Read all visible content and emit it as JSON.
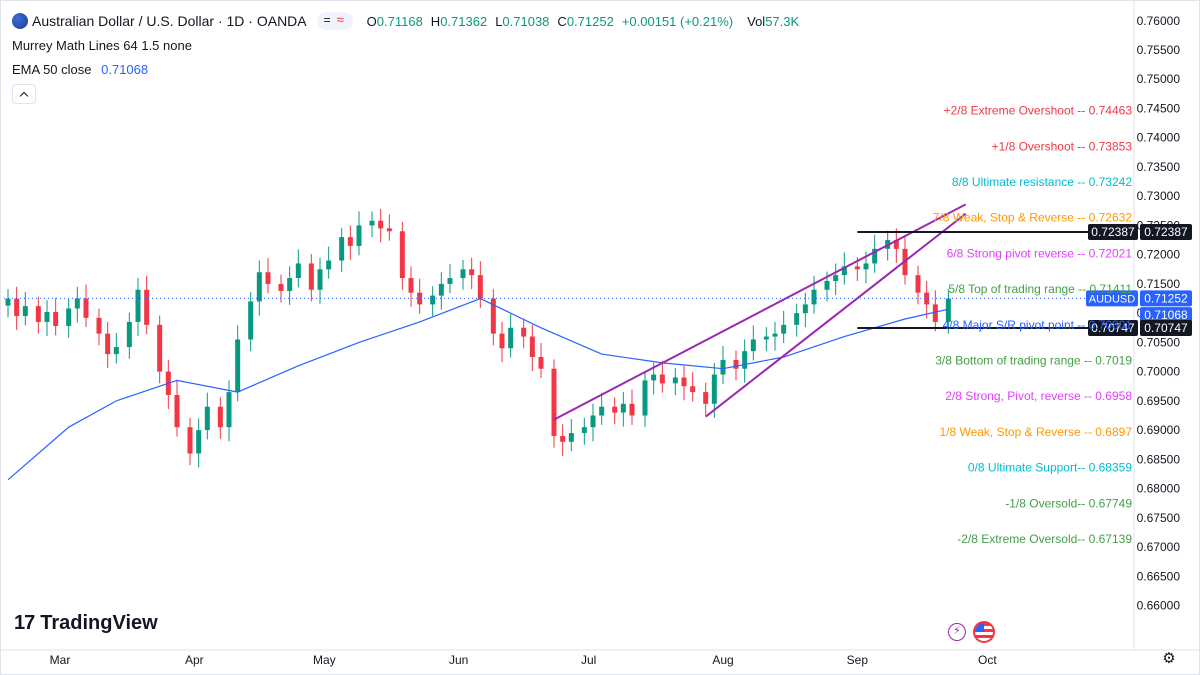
{
  "header": {
    "symbol_title": "Australian Dollar / U.S. Dollar · 1D · OANDA",
    "ohlc": [
      {
        "label": "O",
        "value": "0.71168"
      },
      {
        "label": "H",
        "value": "0.71362"
      },
      {
        "label": "L",
        "value": "0.71038"
      },
      {
        "label": "C",
        "value": "0.71252"
      }
    ],
    "change": "+0.00151 (+0.21%)",
    "volume_label": "Vol",
    "volume_value": "57.3K",
    "indicator1": "Murrey Math Lines 64 1.5 none",
    "indicator2_name": "EMA 50 close",
    "indicator2_value": "0.71068"
  },
  "branding": {
    "logo_text": "TradingView"
  },
  "colors": {
    "up": "#089981",
    "down": "#f23645",
    "ema": "#2962ff",
    "channel": "#9c27b0",
    "hline": "#131722",
    "axis_text": "#131722",
    "price_dots": "#2962ff"
  },
  "chart_data": {
    "type": "candlestick",
    "symbol": "AUDUSD",
    "timeframe": "1D",
    "y_axis": {
      "ticks": [
        "0.76000",
        "0.75500",
        "0.75000",
        "0.74500",
        "0.74000",
        "0.73500",
        "0.73000",
        "0.72500",
        "0.72000",
        "0.71500",
        "0.71000",
        "0.70500",
        "0.70000",
        "0.69500",
        "0.69000",
        "0.68500",
        "0.68000",
        "0.67500",
        "0.67000",
        "0.66500",
        "0.66000"
      ],
      "range": [
        0.6565,
        0.7615
      ]
    },
    "x_axis": {
      "months": [
        {
          "label": "Mar",
          "date": "2025-03-01"
        },
        {
          "label": "Apr",
          "date": "2025-04-01"
        },
        {
          "label": "May",
          "date": "2025-05-01"
        },
        {
          "label": "Jun",
          "date": "2025-06-01"
        },
        {
          "label": "Jul",
          "date": "2025-07-01"
        },
        {
          "label": "Aug",
          "date": "2025-08-01"
        },
        {
          "label": "Sep",
          "date": "2025-09-01"
        },
        {
          "label": "Oct",
          "date": "2025-10-01"
        }
      ],
      "range": [
        "2025-02-17",
        "2025-10-21"
      ]
    },
    "closes": [
      {
        "date": "2025-02-17",
        "close": 0.7125
      },
      {
        "date": "2025-02-19",
        "close": 0.7095
      },
      {
        "date": "2025-02-21",
        "close": 0.7112
      },
      {
        "date": "2025-02-24",
        "close": 0.7085
      },
      {
        "date": "2025-02-26",
        "close": 0.7102
      },
      {
        "date": "2025-02-28",
        "close": 0.7078
      },
      {
        "date": "2025-03-03",
        "close": 0.7108
      },
      {
        "date": "2025-03-05",
        "close": 0.7125
      },
      {
        "date": "2025-03-07",
        "close": 0.7092
      },
      {
        "date": "2025-03-10",
        "close": 0.7065
      },
      {
        "date": "2025-03-12",
        "close": 0.703
      },
      {
        "date": "2025-03-14",
        "close": 0.7042
      },
      {
        "date": "2025-03-17",
        "close": 0.7085
      },
      {
        "date": "2025-03-19",
        "close": 0.714
      },
      {
        "date": "2025-03-21",
        "close": 0.708
      },
      {
        "date": "2025-03-24",
        "close": 0.7
      },
      {
        "date": "2025-03-26",
        "close": 0.696
      },
      {
        "date": "2025-03-28",
        "close": 0.6905
      },
      {
        "date": "2025-03-31",
        "close": 0.686
      },
      {
        "date": "2025-04-02",
        "close": 0.69
      },
      {
        "date": "2025-04-04",
        "close": 0.694
      },
      {
        "date": "2025-04-07",
        "close": 0.6905
      },
      {
        "date": "2025-04-09",
        "close": 0.6965
      },
      {
        "date": "2025-04-11",
        "close": 0.7055
      },
      {
        "date": "2025-04-14",
        "close": 0.712
      },
      {
        "date": "2025-04-16",
        "close": 0.717
      },
      {
        "date": "2025-04-18",
        "close": 0.715
      },
      {
        "date": "2025-04-21",
        "close": 0.7138
      },
      {
        "date": "2025-04-23",
        "close": 0.716
      },
      {
        "date": "2025-04-25",
        "close": 0.7185
      },
      {
        "date": "2025-04-28",
        "close": 0.714
      },
      {
        "date": "2025-04-30",
        "close": 0.7175
      },
      {
        "date": "2025-05-02",
        "close": 0.719
      },
      {
        "date": "2025-05-05",
        "close": 0.723
      },
      {
        "date": "2025-05-07",
        "close": 0.7215
      },
      {
        "date": "2025-05-09",
        "close": 0.725
      },
      {
        "date": "2025-05-12",
        "close": 0.7258
      },
      {
        "date": "2025-05-14",
        "close": 0.7245
      },
      {
        "date": "2025-05-16",
        "close": 0.724
      },
      {
        "date": "2025-05-19",
        "close": 0.716
      },
      {
        "date": "2025-05-21",
        "close": 0.7135
      },
      {
        "date": "2025-05-23",
        "close": 0.7115
      },
      {
        "date": "2025-05-26",
        "close": 0.713
      },
      {
        "date": "2025-05-28",
        "close": 0.715
      },
      {
        "date": "2025-05-30",
        "close": 0.716
      },
      {
        "date": "2025-06-02",
        "close": 0.7175
      },
      {
        "date": "2025-06-04",
        "close": 0.7165
      },
      {
        "date": "2025-06-06",
        "close": 0.7125
      },
      {
        "date": "2025-06-09",
        "close": 0.7065
      },
      {
        "date": "2025-06-11",
        "close": 0.704
      },
      {
        "date": "2025-06-13",
        "close": 0.7075
      },
      {
        "date": "2025-06-16",
        "close": 0.706
      },
      {
        "date": "2025-06-18",
        "close": 0.7025
      },
      {
        "date": "2025-06-20",
        "close": 0.7005
      },
      {
        "date": "2025-06-23",
        "close": 0.689
      },
      {
        "date": "2025-06-25",
        "close": 0.688
      },
      {
        "date": "2025-06-27",
        "close": 0.6895
      },
      {
        "date": "2025-06-30",
        "close": 0.6905
      },
      {
        "date": "2025-07-02",
        "close": 0.6925
      },
      {
        "date": "2025-07-04",
        "close": 0.694
      },
      {
        "date": "2025-07-07",
        "close": 0.693
      },
      {
        "date": "2025-07-09",
        "close": 0.6945
      },
      {
        "date": "2025-07-11",
        "close": 0.6925
      },
      {
        "date": "2025-07-14",
        "close": 0.6985
      },
      {
        "date": "2025-07-16",
        "close": 0.6995
      },
      {
        "date": "2025-07-18",
        "close": 0.698
      },
      {
        "date": "2025-07-21",
        "close": 0.699
      },
      {
        "date": "2025-07-23",
        "close": 0.6975
      },
      {
        "date": "2025-07-25",
        "close": 0.6965
      },
      {
        "date": "2025-07-28",
        "close": 0.6945
      },
      {
        "date": "2025-07-30",
        "close": 0.6995
      },
      {
        "date": "2025-08-01",
        "close": 0.702
      },
      {
        "date": "2025-08-04",
        "close": 0.7005
      },
      {
        "date": "2025-08-06",
        "close": 0.7035
      },
      {
        "date": "2025-08-08",
        "close": 0.7055
      },
      {
        "date": "2025-08-11",
        "close": 0.706
      },
      {
        "date": "2025-08-13",
        "close": 0.7065
      },
      {
        "date": "2025-08-15",
        "close": 0.708
      },
      {
        "date": "2025-08-18",
        "close": 0.71
      },
      {
        "date": "2025-08-20",
        "close": 0.7115
      },
      {
        "date": "2025-08-22",
        "close": 0.714
      },
      {
        "date": "2025-08-25",
        "close": 0.7155
      },
      {
        "date": "2025-08-27",
        "close": 0.7165
      },
      {
        "date": "2025-08-29",
        "close": 0.718
      },
      {
        "date": "2025-09-01",
        "close": 0.7175
      },
      {
        "date": "2025-09-03",
        "close": 0.7185
      },
      {
        "date": "2025-09-05",
        "close": 0.721
      },
      {
        "date": "2025-09-08",
        "close": 0.7225
      },
      {
        "date": "2025-09-10",
        "close": 0.721
      },
      {
        "date": "2025-09-12",
        "close": 0.7165
      },
      {
        "date": "2025-09-15",
        "close": 0.7135
      },
      {
        "date": "2025-09-17",
        "close": 0.7115
      },
      {
        "date": "2025-09-19",
        "close": 0.7085
      },
      {
        "date": "2025-09-22",
        "close": 0.7125
      }
    ],
    "ema50": {
      "name": "EMA 50 close",
      "points": [
        {
          "date": "2025-02-17",
          "value": 0.6815
        },
        {
          "date": "2025-03-03",
          "value": 0.6905
        },
        {
          "date": "2025-03-14",
          "value": 0.695
        },
        {
          "date": "2025-03-28",
          "value": 0.6985
        },
        {
          "date": "2025-04-11",
          "value": 0.6965
        },
        {
          "date": "2025-04-25",
          "value": 0.701
        },
        {
          "date": "2025-05-09",
          "value": 0.705
        },
        {
          "date": "2025-05-23",
          "value": 0.7085
        },
        {
          "date": "2025-06-06",
          "value": 0.7125
        },
        {
          "date": "2025-06-20",
          "value": 0.7075
        },
        {
          "date": "2025-07-04",
          "value": 0.703
        },
        {
          "date": "2025-07-18",
          "value": 0.7015
        },
        {
          "date": "2025-08-01",
          "value": 0.7005
        },
        {
          "date": "2025-08-15",
          "value": 0.7025
        },
        {
          "date": "2025-08-29",
          "value": 0.706
        },
        {
          "date": "2025-09-12",
          "value": 0.709
        },
        {
          "date": "2025-09-22",
          "value": 0.71068
        }
      ]
    },
    "channel_lines": [
      {
        "from": {
          "date": "2025-06-23",
          "price": 0.6918
        },
        "to": {
          "date": "2025-09-26",
          "price": 0.7286
        }
      },
      {
        "from": {
          "date": "2025-07-28",
          "price": 0.6923
        },
        "to": {
          "date": "2025-09-26",
          "price": 0.727
        }
      }
    ],
    "horizontal_lines": [
      {
        "price": 0.72387,
        "label": "0.72387",
        "from_date": "2025-09-01"
      },
      {
        "price": 0.70747,
        "label": "0.70747",
        "from_date": "2025-09-01"
      }
    ],
    "current_price": {
      "symbol": "AUDUSD",
      "value": 0.71252,
      "label": "0.71252"
    },
    "ema_tag": {
      "value": 0.71068,
      "label": "0.71068"
    },
    "murrey_levels": [
      {
        "label": "+2/8 Extreme Overshoot --  0.74463",
        "price": 0.74463,
        "color": "#f23645"
      },
      {
        "label": "+1/8 Overshoot --  0.73853",
        "price": 0.73853,
        "color": "#f23645"
      },
      {
        "label": "8/8 Ultimate resistance --  0.73242",
        "price": 0.73242,
        "color": "#00bcd4"
      },
      {
        "label": "7/8 Weak, Stop & Reverse --  0.72632",
        "price": 0.72632,
        "color": "#ff9800"
      },
      {
        "label": "6/8 Strong pivot reverse --  0.72021",
        "price": 0.72021,
        "color": "#e040fb"
      },
      {
        "label": "5/8 Top of trading range --  0.71411",
        "price": 0.71411,
        "color": "#43a047"
      },
      {
        "label": "4/8 Major S/R pivot point --  0.70801",
        "price": 0.70801,
        "color": "#2962ff"
      },
      {
        "label": "3/8 Bottom of trading range --  0.7019",
        "price": 0.7019,
        "color": "#43a047"
      },
      {
        "label": "2/8 Strong, Pivot, reverse --  0.6958",
        "price": 0.6958,
        "color": "#e040fb"
      },
      {
        "label": "1/8 Weak, Stop & Reverse --  0.6897",
        "price": 0.6897,
        "color": "#ff9800"
      },
      {
        "label": "0/8 Ultimate Support--  0.68359",
        "price": 0.68359,
        "color": "#00bcd4"
      },
      {
        "label": "-1/8 Oversold--  0.67749",
        "price": 0.67749,
        "color": "#43a047"
      },
      {
        "label": "-2/8 Extreme Oversold--  0.67139",
        "price": 0.67139,
        "color": "#43a047"
      }
    ]
  }
}
